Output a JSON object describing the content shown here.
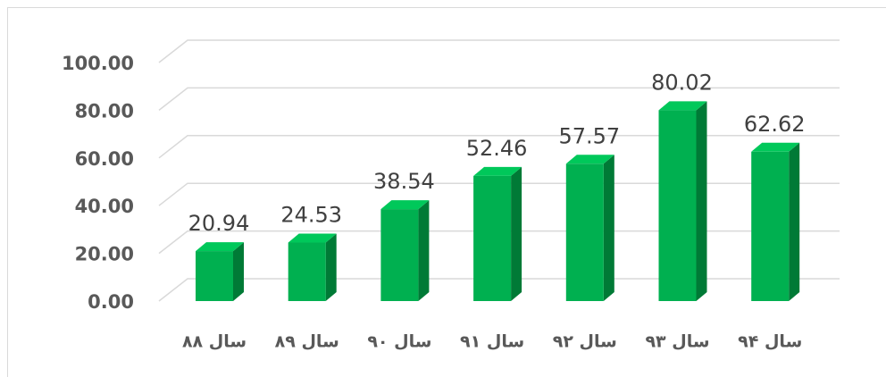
{
  "chart_data": {
    "type": "bar3d",
    "categories": [
      "سال ۸۸",
      "سال ۸۹",
      "سال ۹۰",
      "سال ۹۱",
      "سال ۹۲",
      "سال ۹۳",
      "سال ۹۴"
    ],
    "values": [
      20.94,
      24.53,
      38.54,
      52.46,
      57.57,
      80.02,
      62.62
    ],
    "color": "#00b050",
    "ylim": [
      0,
      100
    ],
    "yticks": [
      {
        "value": 0,
        "label": "0.00"
      },
      {
        "value": 20,
        "label": "20.00"
      },
      {
        "value": 40,
        "label": "40.00"
      },
      {
        "value": 60,
        "label": "60.00"
      },
      {
        "value": 80,
        "label": "80.00"
      },
      {
        "value": 100,
        "label": "100.00"
      }
    ],
    "grid": true
  }
}
